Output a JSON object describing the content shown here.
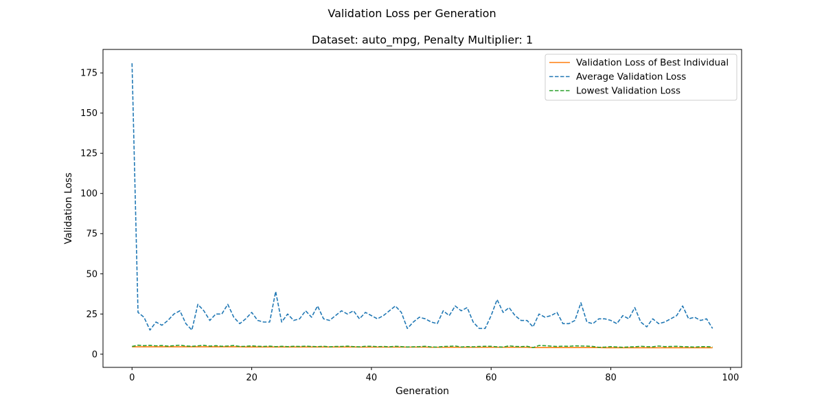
{
  "chart_data": {
    "type": "line",
    "suptitle": "Validation Loss per Generation",
    "title": "Dataset: auto_mpg, Penalty Multiplier: 1",
    "xlabel": "Generation",
    "ylabel": "Validation Loss",
    "xlim": [
      -4.85,
      101.85
    ],
    "ylim": [
      -8.2,
      189.6
    ],
    "xticks": [
      0,
      20,
      40,
      60,
      80,
      100
    ],
    "yticks": [
      0,
      25,
      50,
      75,
      100,
      125,
      150,
      175
    ],
    "grid": false,
    "legend_position": "top-right",
    "x": [
      0,
      1,
      2,
      3,
      4,
      5,
      6,
      7,
      8,
      9,
      10,
      11,
      12,
      13,
      14,
      15,
      16,
      17,
      18,
      19,
      20,
      21,
      22,
      23,
      24,
      25,
      26,
      27,
      28,
      29,
      30,
      31,
      32,
      33,
      34,
      35,
      36,
      37,
      38,
      39,
      40,
      41,
      42,
      43,
      44,
      45,
      46,
      47,
      48,
      49,
      50,
      51,
      52,
      53,
      54,
      55,
      56,
      57,
      58,
      59,
      60,
      61,
      62,
      63,
      64,
      65,
      66,
      67,
      68,
      69,
      70,
      71,
      72,
      73,
      74,
      75,
      76,
      77,
      78,
      79,
      80,
      81,
      82,
      83,
      84,
      85,
      86,
      87,
      88,
      89,
      90,
      91,
      92,
      93,
      94,
      95,
      96,
      97
    ],
    "series": [
      {
        "name": "Validation Loss of Best Individual",
        "color": "#ff7f0e",
        "linestyle": "solid",
        "values": [
          4.6,
          4.6,
          4.6,
          4.6,
          4.6,
          4.6,
          4.6,
          4.6,
          4.6,
          4.6,
          4.6,
          4.6,
          4.6,
          4.6,
          4.6,
          4.6,
          4.6,
          4.6,
          4.6,
          4.5,
          4.5,
          4.5,
          4.5,
          4.5,
          4.5,
          4.5,
          4.5,
          4.5,
          4.5,
          4.5,
          4.5,
          4.5,
          4.5,
          4.5,
          4.5,
          4.5,
          4.5,
          4.5,
          4.4,
          4.4,
          4.4,
          4.4,
          4.4,
          4.4,
          4.4,
          4.4,
          4.4,
          4.4,
          4.4,
          4.4,
          4.3,
          4.3,
          4.3,
          4.3,
          4.3,
          4.3,
          4.3,
          4.3,
          4.3,
          4.3,
          4.3,
          4.3,
          4.3,
          4.3,
          4.3,
          4.3,
          4.3,
          4.1,
          4.1,
          4.1,
          4.1,
          4.1,
          4.1,
          4.1,
          4.1,
          4.1,
          4.1,
          4.1,
          4.1,
          4.0,
          4.0,
          4.0,
          4.0,
          4.0,
          4.0,
          4.0,
          4.0,
          4.0,
          4.0,
          4.0,
          4.0,
          4.0,
          4.0,
          4.0,
          4.0,
          4.0,
          4.0,
          4.0
        ]
      },
      {
        "name": "Average Validation Loss",
        "color": "#1f77b4",
        "linestyle": "dashed",
        "values": [
          181,
          26,
          23,
          15,
          20,
          18,
          21,
          25,
          27,
          19,
          15,
          31,
          27,
          21,
          25,
          25,
          31,
          23,
          19,
          22,
          26,
          21,
          20,
          20,
          39,
          20,
          25,
          21,
          22,
          27,
          23,
          30,
          22,
          21,
          24,
          27,
          25,
          27,
          22,
          26,
          24,
          22,
          24,
          27,
          30,
          26,
          16,
          20,
          23,
          22,
          20,
          19,
          27,
          24,
          30,
          27,
          29,
          20,
          16,
          16,
          24,
          34,
          26,
          29,
          24,
          21,
          21,
          17,
          25,
          23,
          24,
          26,
          19,
          19,
          21,
          32,
          20,
          19,
          22,
          22,
          21,
          19,
          24,
          22,
          29,
          20,
          17,
          22,
          19,
          20,
          22,
          24,
          30,
          22,
          23,
          21,
          22,
          16
        ]
      },
      {
        "name": "Lowest Validation Loss",
        "color": "#2ca02c",
        "linestyle": "dashed",
        "values": [
          4.8,
          5.6,
          5.3,
          5.5,
          5.2,
          5.4,
          5.0,
          5.3,
          5.6,
          5.1,
          4.9,
          5.2,
          5.5,
          5.0,
          5.3,
          4.9,
          5.1,
          5.4,
          4.8,
          4.9,
          5.2,
          4.9,
          4.8,
          5.0,
          4.7,
          4.9,
          4.7,
          4.9,
          4.8,
          5.0,
          4.8,
          4.7,
          4.9,
          4.6,
          4.8,
          4.8,
          5.0,
          4.7,
          4.6,
          4.9,
          4.9,
          4.7,
          4.8,
          4.6,
          4.9,
          4.7,
          4.5,
          4.6,
          4.7,
          4.9,
          4.5,
          4.4,
          4.8,
          4.9,
          5.1,
          4.5,
          4.7,
          4.6,
          4.8,
          4.9,
          4.9,
          4.6,
          4.4,
          5.2,
          4.8,
          4.7,
          4.9,
          4.1,
          5.4,
          5.3,
          5.0,
          4.8,
          5.0,
          4.9,
          5.2,
          5.1,
          5.0,
          4.8,
          4.3,
          4.4,
          4.7,
          4.5,
          4.3,
          4.5,
          4.6,
          4.9,
          4.7,
          4.6,
          5.1,
          4.7,
          4.8,
          4.9,
          4.7,
          4.6,
          4.4,
          4.7,
          4.7,
          4.5
        ]
      }
    ]
  }
}
